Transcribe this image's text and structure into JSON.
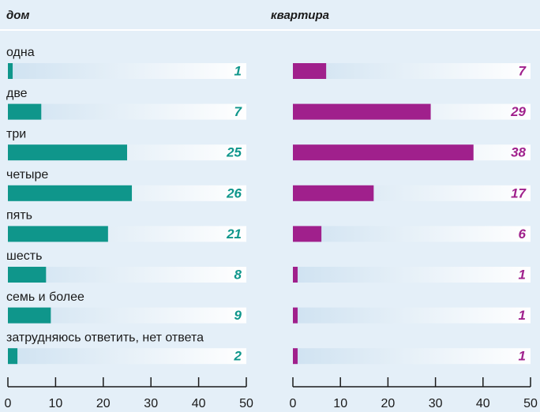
{
  "chart_data": [
    {
      "type": "bar",
      "title": "дом",
      "categories": [
        "одна",
        "две",
        "три",
        "четыре",
        "пять",
        "шесть",
        "семь и более",
        "затрудняюсь ответить, нет ответа"
      ],
      "values": [
        1,
        7,
        25,
        26,
        21,
        8,
        9,
        2
      ],
      "color": "#0f968b",
      "xlim": [
        0,
        50
      ],
      "xticks": [
        0,
        10,
        20,
        30,
        40,
        50
      ]
    },
    {
      "type": "bar",
      "title": "квартира",
      "values": [
        7,
        29,
        38,
        17,
        6,
        1,
        1,
        1
      ],
      "color": "#a0208c",
      "xlim": [
        0,
        50
      ],
      "xticks": [
        0,
        10,
        20,
        30,
        40,
        50
      ]
    }
  ]
}
